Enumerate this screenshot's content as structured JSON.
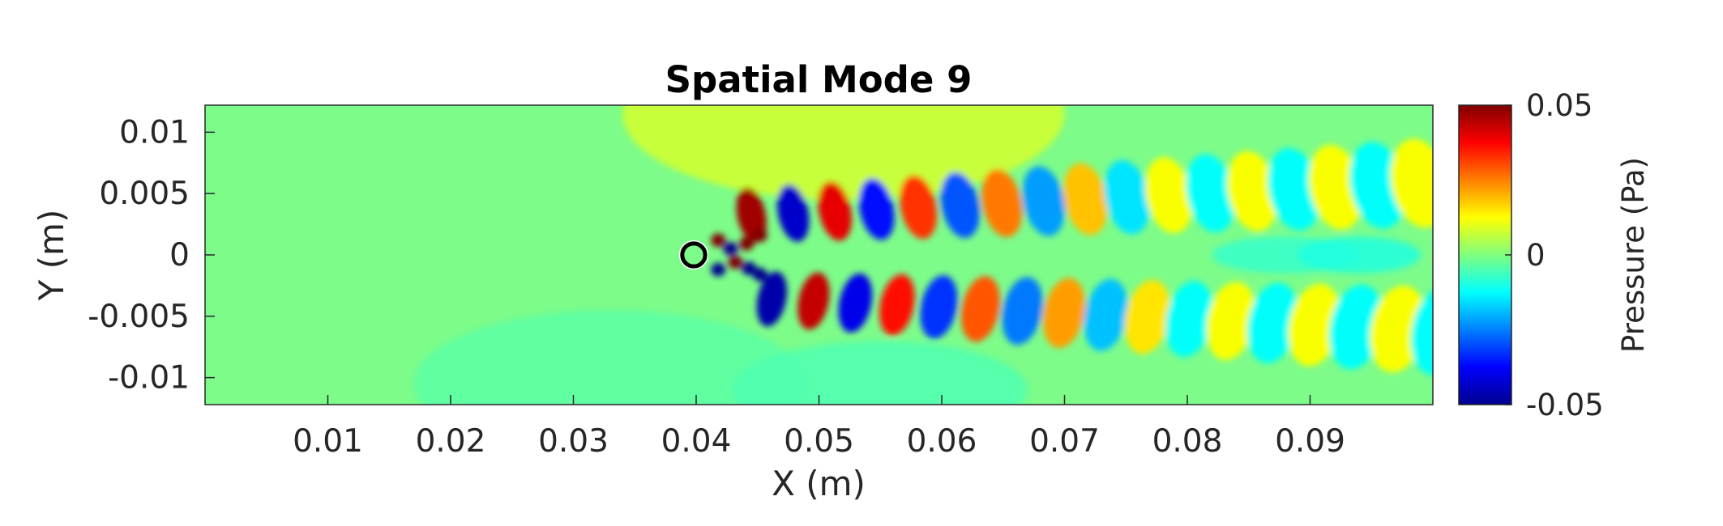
{
  "chart_data": {
    "type": "heatmap",
    "title": "Spatial Mode 9",
    "xlabel": "X (m)",
    "ylabel": "Y (m)",
    "colorbar_label": "Pressure (Pa)",
    "colormap": "jet",
    "xlim": [
      0,
      0.1
    ],
    "ylim": [
      -0.0122,
      0.0122
    ],
    "clim": [
      -0.05,
      0.05
    ],
    "x_ticks": [
      0.01,
      0.02,
      0.03,
      0.04,
      0.05,
      0.06,
      0.07,
      0.08,
      0.09
    ],
    "x_tick_labels": [
      "0.01",
      "0.02",
      "0.03",
      "0.04",
      "0.05",
      "0.06",
      "0.07",
      "0.08",
      "0.09"
    ],
    "y_ticks": [
      0.01,
      0.005,
      0,
      -0.005,
      -0.01
    ],
    "y_tick_labels": [
      "0.01",
      "0.005",
      "0",
      "-0.005",
      "-0.01"
    ],
    "colorbar_ticks": [
      0.05,
      0,
      -0.05
    ],
    "colorbar_tick_labels": [
      "0.05",
      "0",
      "-0.05"
    ],
    "cylinder": {
      "center_x": 0.0398,
      "center_y": 0.0,
      "radius": 0.0012
    },
    "wake": {
      "start_x": 0.0415,
      "end_x": 0.1,
      "row_offset_y": 0.0031,
      "wavelength": 0.0068,
      "amplitude_near": 0.05,
      "amplitude_far": 0.012
    },
    "grid": false
  }
}
